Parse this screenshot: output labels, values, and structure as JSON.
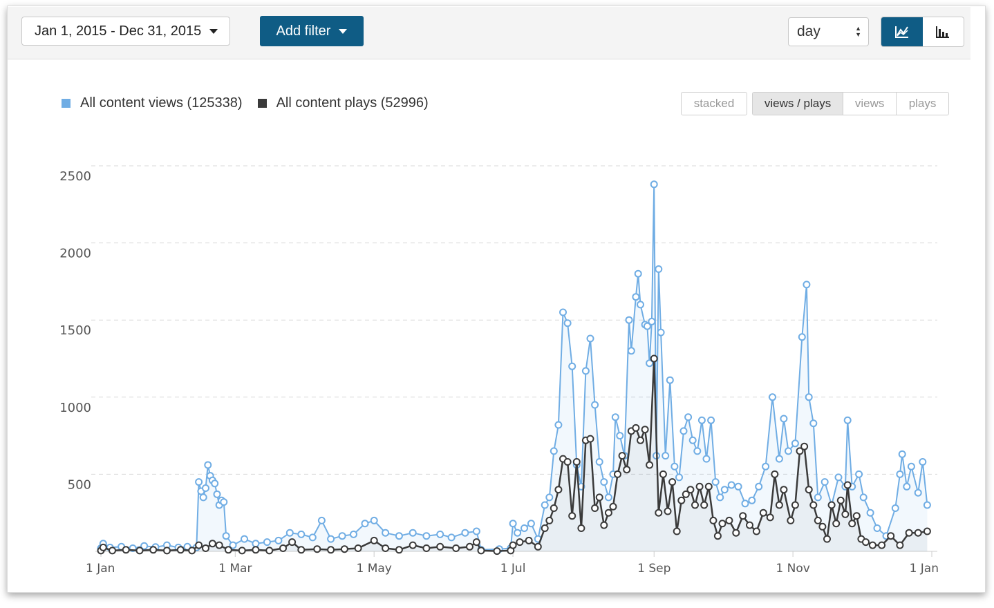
{
  "toolbar": {
    "date_range": "Jan 1, 2015 - Dec 31, 2015",
    "add_filter_label": "Add filter",
    "interval_value": "day"
  },
  "legend": [
    {
      "label": "All content views (125338)",
      "color": "#70ade4"
    },
    {
      "label": "All content plays (52996)",
      "color": "#3a3a3a"
    }
  ],
  "modes": {
    "stacked": "stacked",
    "views_plays": "views / plays",
    "views": "views",
    "plays": "plays",
    "active": "views / plays"
  },
  "chart_data": {
    "type": "line",
    "x_axis": {
      "type": "date",
      "min": "2015-01-01",
      "max": "2016-01-01",
      "tick_labels": [
        "1 Jan",
        "1 Mar",
        "1 May",
        "1 Jul",
        "1 Sep",
        "1 Nov",
        "1 Jan"
      ],
      "tick_dates": [
        "2015-01-01",
        "2015-03-01",
        "2015-05-01",
        "2015-07-01",
        "2015-09-01",
        "2015-11-01",
        "2016-01-01"
      ]
    },
    "y_axis": {
      "min": 0,
      "max": 2500,
      "ticks": [
        500,
        1000,
        1500,
        2000,
        2500
      ],
      "grid": true
    },
    "area_fill": true,
    "series": [
      {
        "name": "All content views",
        "color": "#70ade4",
        "points": [
          [
            "2015-01-01",
            20
          ],
          [
            "2015-01-02",
            50
          ],
          [
            "2015-01-05",
            25
          ],
          [
            "2015-01-10",
            30
          ],
          [
            "2015-01-15",
            20
          ],
          [
            "2015-01-20",
            35
          ],
          [
            "2015-01-25",
            28
          ],
          [
            "2015-01-30",
            40
          ],
          [
            "2015-02-04",
            25
          ],
          [
            "2015-02-08",
            30
          ],
          [
            "2015-02-12",
            25
          ],
          [
            "2015-02-13",
            450
          ],
          [
            "2015-02-14",
            390
          ],
          [
            "2015-02-15",
            350
          ],
          [
            "2015-02-16",
            410
          ],
          [
            "2015-02-17",
            560
          ],
          [
            "2015-02-18",
            490
          ],
          [
            "2015-02-19",
            460
          ],
          [
            "2015-02-20",
            440
          ],
          [
            "2015-02-21",
            370
          ],
          [
            "2015-02-22",
            300
          ],
          [
            "2015-02-23",
            330
          ],
          [
            "2015-02-24",
            320
          ],
          [
            "2015-02-25",
            100
          ],
          [
            "2015-02-28",
            40
          ],
          [
            "2015-03-05",
            80
          ],
          [
            "2015-03-10",
            50
          ],
          [
            "2015-03-15",
            60
          ],
          [
            "2015-03-20",
            70
          ],
          [
            "2015-03-25",
            120
          ],
          [
            "2015-03-30",
            110
          ],
          [
            "2015-04-04",
            90
          ],
          [
            "2015-04-08",
            200
          ],
          [
            "2015-04-12",
            80
          ],
          [
            "2015-04-17",
            100
          ],
          [
            "2015-04-22",
            110
          ],
          [
            "2015-04-27",
            180
          ],
          [
            "2015-05-01",
            200
          ],
          [
            "2015-05-06",
            120
          ],
          [
            "2015-05-12",
            100
          ],
          [
            "2015-05-18",
            120
          ],
          [
            "2015-05-24",
            100
          ],
          [
            "2015-05-30",
            110
          ],
          [
            "2015-06-04",
            90
          ],
          [
            "2015-06-10",
            120
          ],
          [
            "2015-06-15",
            130
          ],
          [
            "2015-06-17",
            10
          ],
          [
            "2015-06-25",
            15
          ],
          [
            "2015-06-30",
            20
          ],
          [
            "2015-07-01",
            180
          ],
          [
            "2015-07-03",
            120
          ],
          [
            "2015-07-06",
            150
          ],
          [
            "2015-07-09",
            180
          ],
          [
            "2015-07-12",
            80
          ],
          [
            "2015-07-15",
            300
          ],
          [
            "2015-07-17",
            350
          ],
          [
            "2015-07-19",
            650
          ],
          [
            "2015-07-21",
            820
          ],
          [
            "2015-07-23",
            1550
          ],
          [
            "2015-07-25",
            1480
          ],
          [
            "2015-07-27",
            1200
          ],
          [
            "2015-07-29",
            560
          ],
          [
            "2015-07-31",
            420
          ],
          [
            "2015-08-02",
            1170
          ],
          [
            "2015-08-04",
            1380
          ],
          [
            "2015-08-06",
            950
          ],
          [
            "2015-08-08",
            580
          ],
          [
            "2015-08-10",
            450
          ],
          [
            "2015-08-12",
            350
          ],
          [
            "2015-08-14",
            500
          ],
          [
            "2015-08-15",
            870
          ],
          [
            "2015-08-17",
            750
          ],
          [
            "2015-08-19",
            620
          ],
          [
            "2015-08-21",
            1500
          ],
          [
            "2015-08-22",
            1300
          ],
          [
            "2015-08-24",
            1650
          ],
          [
            "2015-08-25",
            1800
          ],
          [
            "2015-08-26",
            1600
          ],
          [
            "2015-08-28",
            1470
          ],
          [
            "2015-08-29",
            1460
          ],
          [
            "2015-08-30",
            1220
          ],
          [
            "2015-08-31",
            1490
          ],
          [
            "2015-09-01",
            2380
          ],
          [
            "2015-09-02",
            620
          ],
          [
            "2015-09-03",
            1830
          ],
          [
            "2015-09-04",
            1420
          ],
          [
            "2015-09-06",
            620
          ],
          [
            "2015-09-08",
            1110
          ],
          [
            "2015-09-10",
            550
          ],
          [
            "2015-09-12",
            480
          ],
          [
            "2015-09-14",
            780
          ],
          [
            "2015-09-16",
            870
          ],
          [
            "2015-09-18",
            720
          ],
          [
            "2015-09-20",
            650
          ],
          [
            "2015-09-22",
            850
          ],
          [
            "2015-09-24",
            600
          ],
          [
            "2015-09-26",
            850
          ],
          [
            "2015-09-28",
            450
          ],
          [
            "2015-09-30",
            350
          ],
          [
            "2015-10-02",
            400
          ],
          [
            "2015-10-05",
            430
          ],
          [
            "2015-10-08",
            420
          ],
          [
            "2015-10-11",
            310
          ],
          [
            "2015-10-14",
            330
          ],
          [
            "2015-10-17",
            420
          ],
          [
            "2015-10-20",
            550
          ],
          [
            "2015-10-23",
            1000
          ],
          [
            "2015-10-26",
            600
          ],
          [
            "2015-10-28",
            860
          ],
          [
            "2015-10-30",
            650
          ],
          [
            "2015-11-02",
            700
          ],
          [
            "2015-11-05",
            1390
          ],
          [
            "2015-11-07",
            1730
          ],
          [
            "2015-11-08",
            1000
          ],
          [
            "2015-11-10",
            830
          ],
          [
            "2015-11-12",
            350
          ],
          [
            "2015-11-15",
            450
          ],
          [
            "2015-11-18",
            300
          ],
          [
            "2015-11-21",
            480
          ],
          [
            "2015-11-24",
            420
          ],
          [
            "2015-11-25",
            850
          ],
          [
            "2015-11-27",
            420
          ],
          [
            "2015-11-30",
            500
          ],
          [
            "2015-12-02",
            350
          ],
          [
            "2015-12-05",
            250
          ],
          [
            "2015-12-08",
            150
          ],
          [
            "2015-12-12",
            100
          ],
          [
            "2015-12-16",
            280
          ],
          [
            "2015-12-18",
            500
          ],
          [
            "2015-12-19",
            630
          ],
          [
            "2015-12-21",
            420
          ],
          [
            "2015-12-23",
            550
          ],
          [
            "2015-12-26",
            380
          ],
          [
            "2015-12-28",
            580
          ],
          [
            "2015-12-30",
            300
          ]
        ]
      },
      {
        "name": "All content plays",
        "color": "#3a3a3a",
        "points": [
          [
            "2015-01-01",
            5
          ],
          [
            "2015-01-02",
            25
          ],
          [
            "2015-01-06",
            5
          ],
          [
            "2015-01-12",
            10
          ],
          [
            "2015-01-18",
            5
          ],
          [
            "2015-01-24",
            10
          ],
          [
            "2015-01-30",
            5
          ],
          [
            "2015-02-05",
            10
          ],
          [
            "2015-02-10",
            5
          ],
          [
            "2015-02-13",
            40
          ],
          [
            "2015-02-16",
            20
          ],
          [
            "2015-02-19",
            50
          ],
          [
            "2015-02-22",
            40
          ],
          [
            "2015-02-26",
            10
          ],
          [
            "2015-03-04",
            5
          ],
          [
            "2015-03-10",
            10
          ],
          [
            "2015-03-16",
            5
          ],
          [
            "2015-03-22",
            20
          ],
          [
            "2015-03-26",
            60
          ],
          [
            "2015-03-30",
            10
          ],
          [
            "2015-04-06",
            15
          ],
          [
            "2015-04-12",
            10
          ],
          [
            "2015-04-18",
            15
          ],
          [
            "2015-04-24",
            20
          ],
          [
            "2015-05-01",
            70
          ],
          [
            "2015-05-06",
            20
          ],
          [
            "2015-05-12",
            10
          ],
          [
            "2015-05-18",
            40
          ],
          [
            "2015-05-24",
            20
          ],
          [
            "2015-05-30",
            30
          ],
          [
            "2015-06-06",
            20
          ],
          [
            "2015-06-12",
            30
          ],
          [
            "2015-06-15",
            60
          ],
          [
            "2015-06-17",
            5
          ],
          [
            "2015-06-24",
            2
          ],
          [
            "2015-06-30",
            5
          ],
          [
            "2015-07-01",
            40
          ],
          [
            "2015-07-04",
            60
          ],
          [
            "2015-07-08",
            70
          ],
          [
            "2015-07-12",
            30
          ],
          [
            "2015-07-15",
            150
          ],
          [
            "2015-07-17",
            200
          ],
          [
            "2015-07-19",
            280
          ],
          [
            "2015-07-21",
            400
          ],
          [
            "2015-07-23",
            600
          ],
          [
            "2015-07-25",
            580
          ],
          [
            "2015-07-27",
            230
          ],
          [
            "2015-07-29",
            580
          ],
          [
            "2015-07-31",
            150
          ],
          [
            "2015-08-02",
            720
          ],
          [
            "2015-08-04",
            730
          ],
          [
            "2015-08-06",
            280
          ],
          [
            "2015-08-08",
            350
          ],
          [
            "2015-08-10",
            170
          ],
          [
            "2015-08-12",
            250
          ],
          [
            "2015-08-14",
            290
          ],
          [
            "2015-08-16",
            500
          ],
          [
            "2015-08-18",
            620
          ],
          [
            "2015-08-20",
            530
          ],
          [
            "2015-08-22",
            780
          ],
          [
            "2015-08-24",
            800
          ],
          [
            "2015-08-26",
            720
          ],
          [
            "2015-08-28",
            790
          ],
          [
            "2015-08-30",
            560
          ],
          [
            "2015-09-01",
            1250
          ],
          [
            "2015-09-03",
            250
          ],
          [
            "2015-09-05",
            500
          ],
          [
            "2015-09-07",
            260
          ],
          [
            "2015-09-09",
            450
          ],
          [
            "2015-09-11",
            130
          ],
          [
            "2015-09-13",
            330
          ],
          [
            "2015-09-15",
            370
          ],
          [
            "2015-09-17",
            400
          ],
          [
            "2015-09-19",
            300
          ],
          [
            "2015-09-21",
            420
          ],
          [
            "2015-09-23",
            300
          ],
          [
            "2015-09-25",
            420
          ],
          [
            "2015-09-27",
            200
          ],
          [
            "2015-09-29",
            100
          ],
          [
            "2015-10-01",
            180
          ],
          [
            "2015-10-04",
            200
          ],
          [
            "2015-10-07",
            120
          ],
          [
            "2015-10-10",
            230
          ],
          [
            "2015-10-13",
            170
          ],
          [
            "2015-10-16",
            130
          ],
          [
            "2015-10-19",
            250
          ],
          [
            "2015-10-22",
            220
          ],
          [
            "2015-10-24",
            500
          ],
          [
            "2015-10-26",
            300
          ],
          [
            "2015-10-28",
            400
          ],
          [
            "2015-10-31",
            200
          ],
          [
            "2015-11-02",
            300
          ],
          [
            "2015-11-04",
            650
          ],
          [
            "2015-11-06",
            680
          ],
          [
            "2015-11-08",
            400
          ],
          [
            "2015-11-10",
            300
          ],
          [
            "2015-11-12",
            200
          ],
          [
            "2015-11-14",
            160
          ],
          [
            "2015-11-16",
            80
          ],
          [
            "2015-11-18",
            300
          ],
          [
            "2015-11-20",
            180
          ],
          [
            "2015-11-22",
            330
          ],
          [
            "2015-11-24",
            240
          ],
          [
            "2015-11-25",
            430
          ],
          [
            "2015-11-27",
            180
          ],
          [
            "2015-11-29",
            230
          ],
          [
            "2015-12-01",
            80
          ],
          [
            "2015-12-03",
            60
          ],
          [
            "2015-12-06",
            40
          ],
          [
            "2015-12-10",
            40
          ],
          [
            "2015-12-14",
            100
          ],
          [
            "2015-12-18",
            40
          ],
          [
            "2015-12-22",
            120
          ],
          [
            "2015-12-26",
            120
          ],
          [
            "2015-12-30",
            130
          ]
        ]
      }
    ]
  }
}
